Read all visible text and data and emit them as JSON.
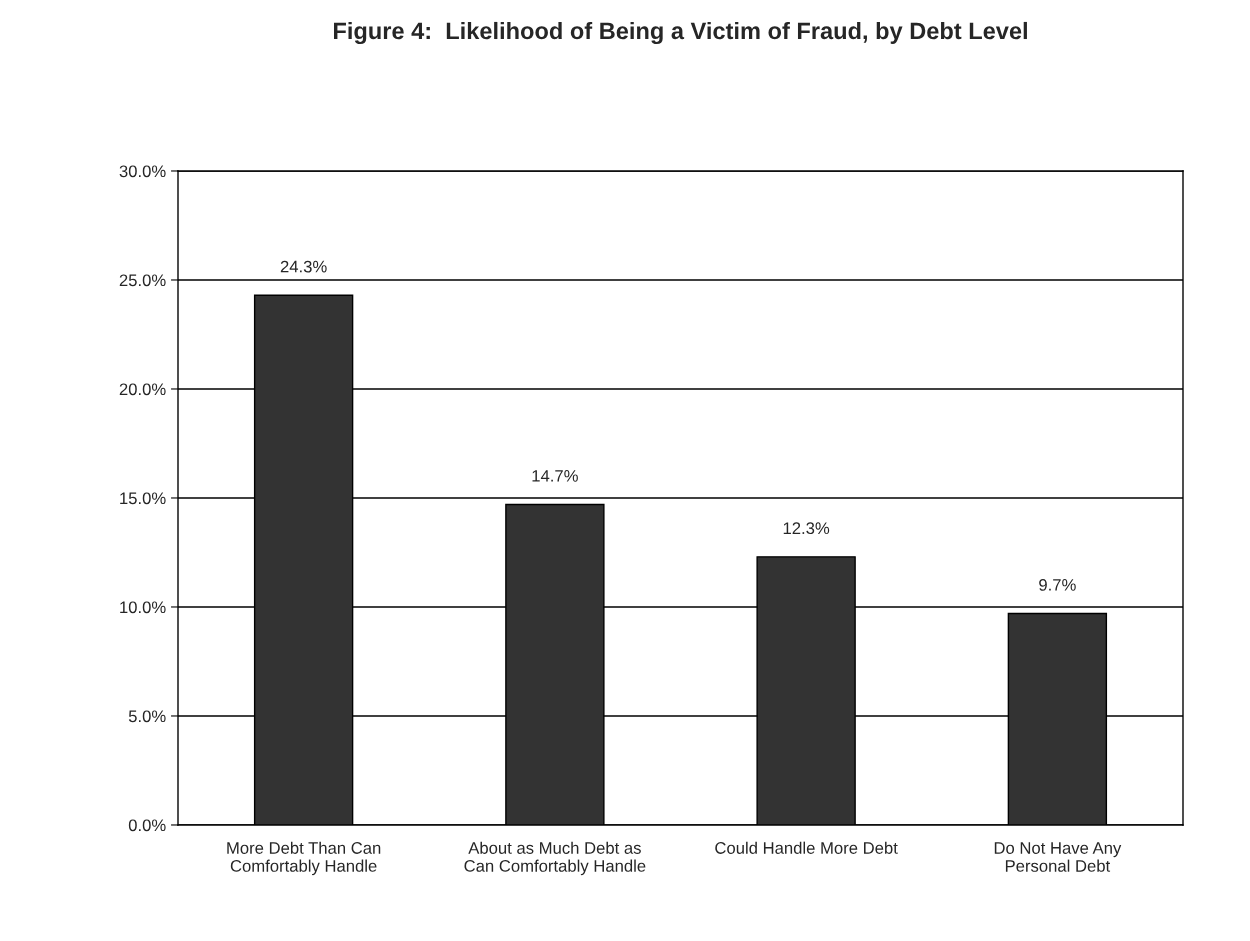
{
  "chart_data": {
    "type": "bar",
    "title": "Figure 4:  Likelihood of Being a Victim of Fraud, by Debt Level",
    "categories": [
      "More Debt Than Can\nComfortably Handle",
      "About as Much Debt as\nCan Comfortably Handle",
      "Could Handle More Debt",
      "Do Not Have Any\nPersonal Debt"
    ],
    "values": [
      24.3,
      14.7,
      12.3,
      9.7
    ],
    "value_labels": [
      "24.3%",
      "14.7%",
      "12.3%",
      "9.7%"
    ],
    "color": "#333333",
    "ylim": [
      0,
      30
    ],
    "yticks": [
      {
        "value": 0,
        "label": "0.0%"
      },
      {
        "value": 5,
        "label": "5.0%"
      },
      {
        "value": 10,
        "label": "10.0%"
      },
      {
        "value": 15,
        "label": "15.0%"
      },
      {
        "value": 20,
        "label": "20.0%"
      },
      {
        "value": 25,
        "label": "25.0%"
      },
      {
        "value": 30,
        "label": "30.0%"
      }
    ],
    "grid": "y"
  }
}
